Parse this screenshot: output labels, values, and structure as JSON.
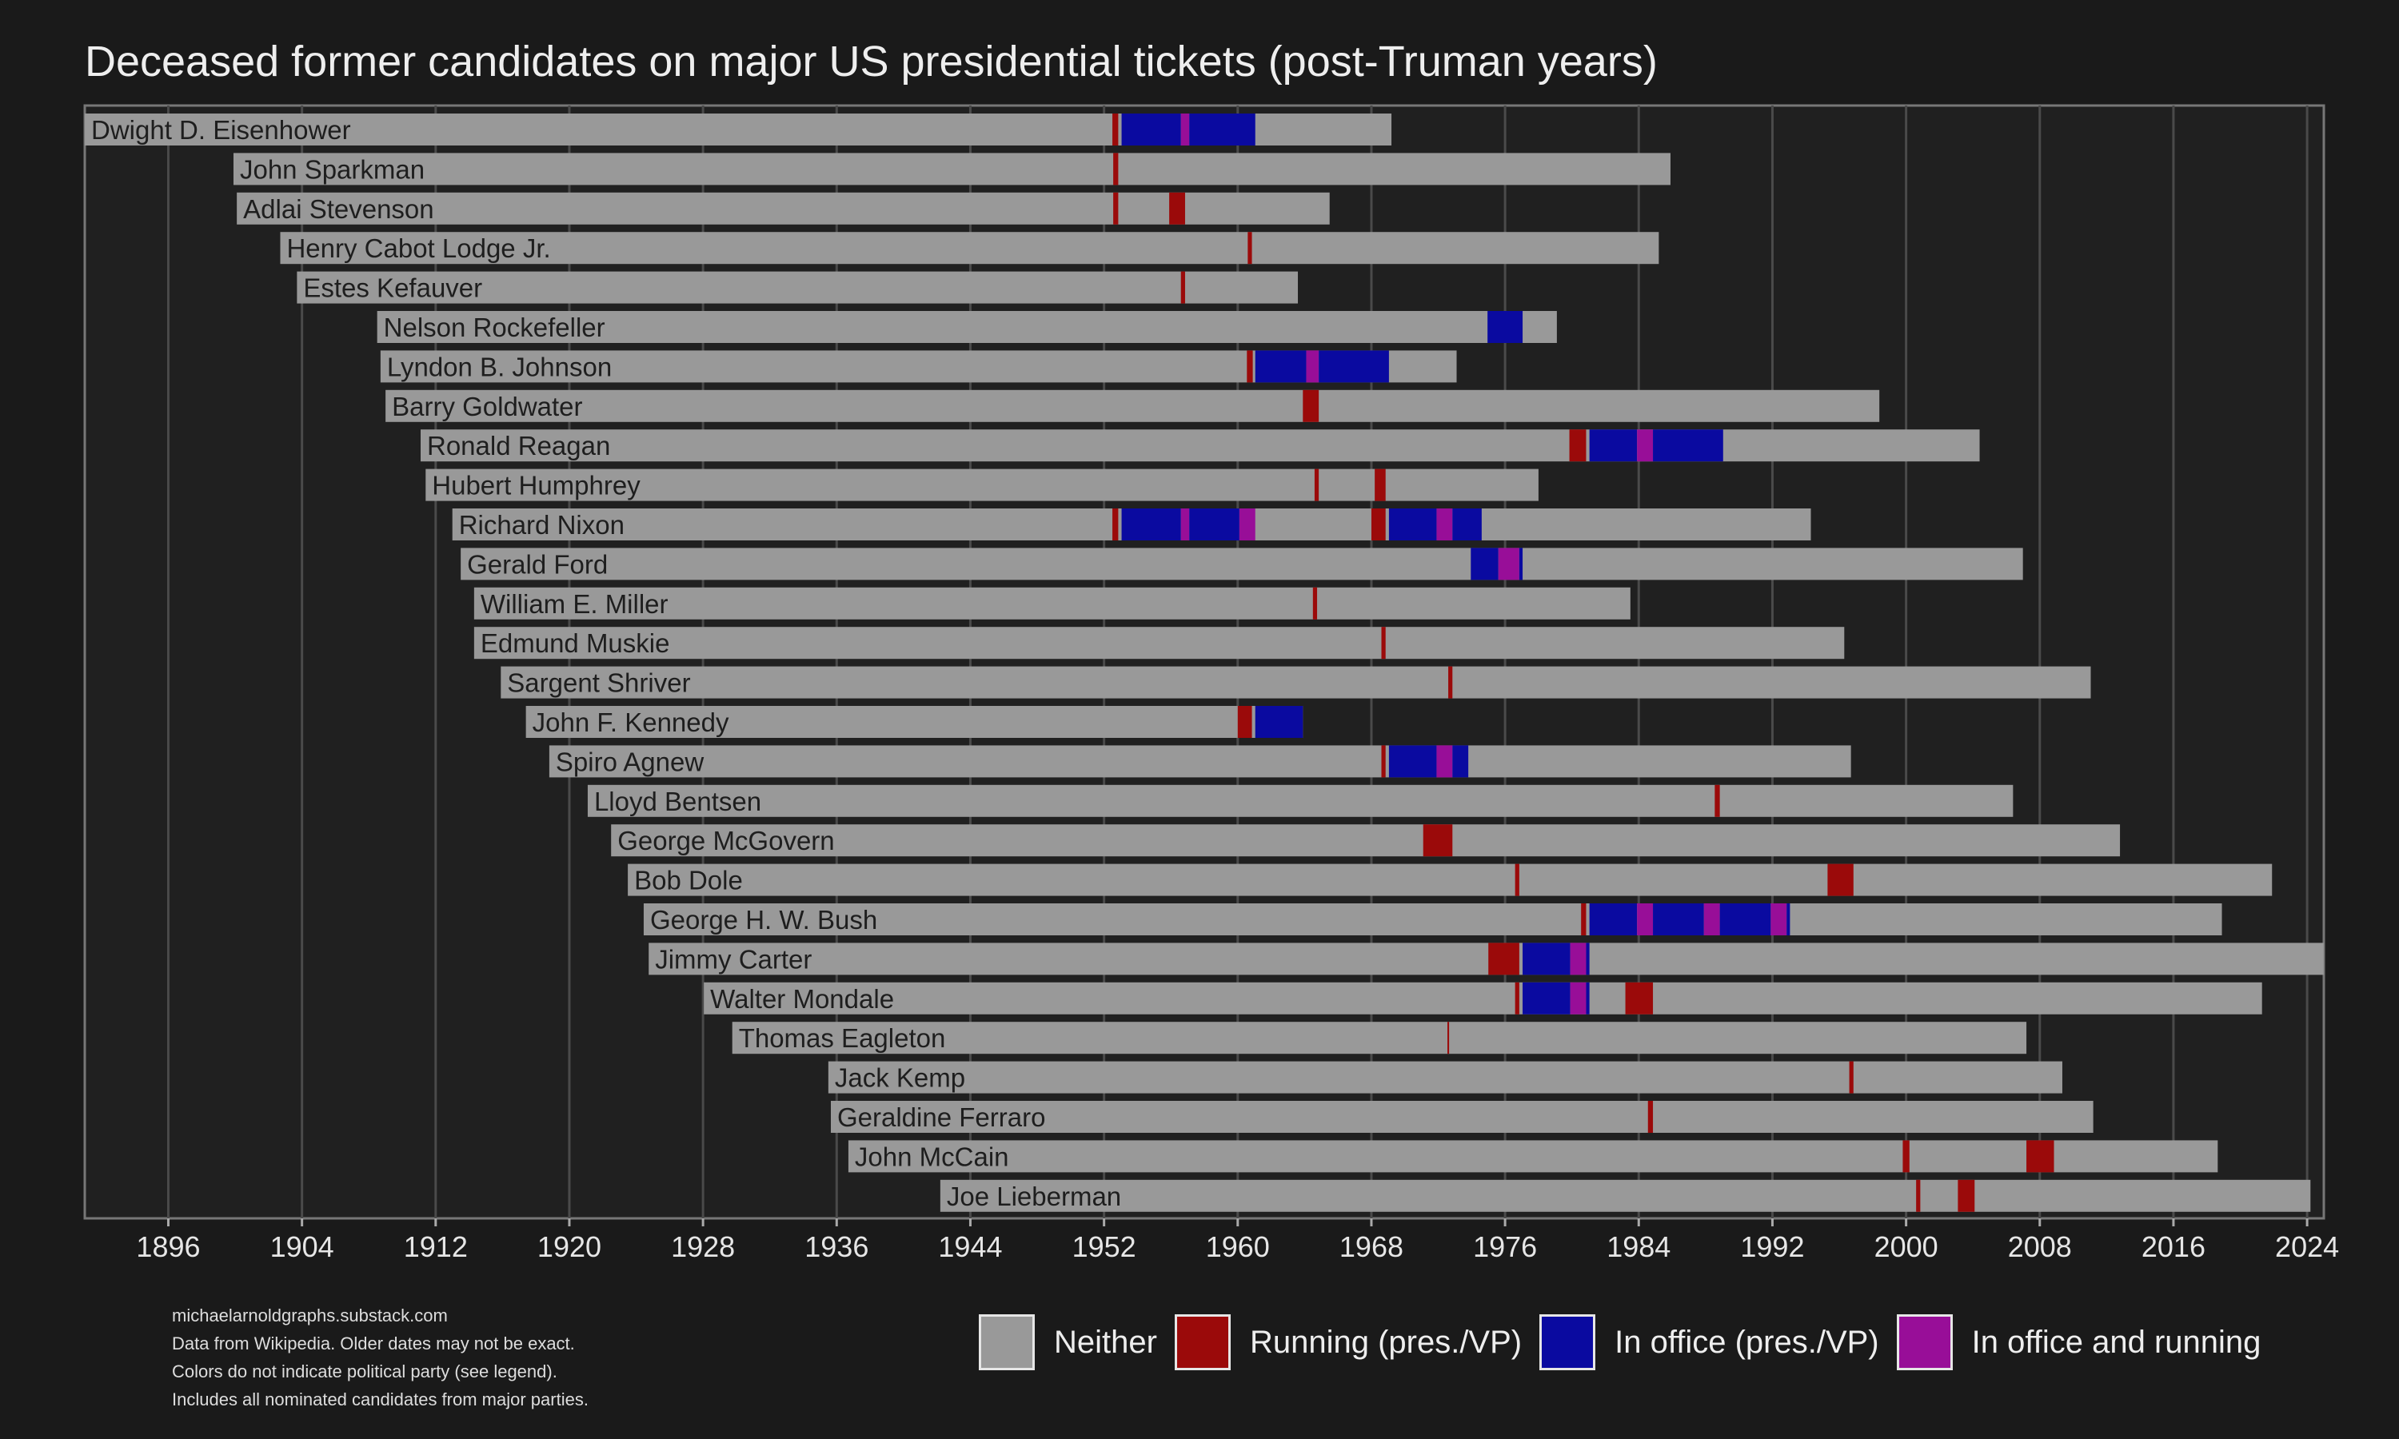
{
  "chart_data": {
    "type": "gantt",
    "title": "Deceased former candidates on major US presidential tickets (post-Truman years)",
    "xlim": [
      1891,
      2025
    ],
    "x_ticks": [
      1896,
      1904,
      1912,
      1920,
      1928,
      1936,
      1944,
      1952,
      1960,
      1968,
      1976,
      1984,
      1992,
      2000,
      2008,
      2016,
      2024
    ],
    "grid": true,
    "legend_position": "bottom-right",
    "colors": {
      "neither": "#999999",
      "running": "#9b0a0a",
      "office": "#0a0aa0",
      "office_running": "#980e98"
    },
    "legend": [
      {
        "key": "neither",
        "label": "Neither"
      },
      {
        "key": "running",
        "label": "Running (pres./VP)"
      },
      {
        "key": "office",
        "label": "In office (pres./VP)"
      },
      {
        "key": "office_running",
        "label": "In office and running"
      }
    ],
    "people": [
      {
        "name": "Dwight D. Eisenhower",
        "birth": 1890.8,
        "death": 1969.2,
        "segments": [
          [
            "running",
            1952.5,
            1952.85
          ],
          [
            "office",
            1953.05,
            1956.6
          ],
          [
            "office_running",
            1956.6,
            1957.1
          ],
          [
            "office",
            1957.1,
            1961.05
          ]
        ]
      },
      {
        "name": "John Sparkman",
        "birth": 1899.9,
        "death": 1985.9,
        "segments": [
          [
            "running",
            1952.55,
            1952.85
          ]
        ]
      },
      {
        "name": "Adlai Stevenson",
        "birth": 1900.1,
        "death": 1965.5,
        "segments": [
          [
            "running",
            1952.55,
            1952.85
          ],
          [
            "running",
            1955.9,
            1956.85
          ]
        ]
      },
      {
        "name": "Henry Cabot Lodge Jr.",
        "birth": 1902.7,
        "death": 1985.2,
        "segments": [
          [
            "running",
            1960.6,
            1960.85
          ]
        ]
      },
      {
        "name": "Estes Kefauver",
        "birth": 1903.7,
        "death": 1963.6,
        "segments": [
          [
            "running",
            1956.6,
            1956.85
          ]
        ]
      },
      {
        "name": "Nelson Rockefeller",
        "birth": 1908.5,
        "death": 1979.1,
        "segments": [
          [
            "office",
            1974.95,
            1977.05
          ]
        ]
      },
      {
        "name": "Lyndon B. Johnson",
        "birth": 1908.7,
        "death": 1973.1,
        "segments": [
          [
            "running",
            1960.55,
            1960.9
          ],
          [
            "office",
            1961.05,
            1964.1
          ],
          [
            "office_running",
            1964.1,
            1964.85
          ],
          [
            "office",
            1964.85,
            1969.05
          ]
        ]
      },
      {
        "name": "Barry Goldwater",
        "birth": 1909.0,
        "death": 1998.4,
        "segments": [
          [
            "running",
            1963.9,
            1964.85
          ]
        ]
      },
      {
        "name": "Ronald Reagan",
        "birth": 1911.1,
        "death": 2004.4,
        "segments": [
          [
            "running",
            1979.85,
            1980.85
          ],
          [
            "office",
            1981.05,
            1983.9
          ],
          [
            "office_running",
            1983.9,
            1984.85
          ],
          [
            "office",
            1984.85,
            1989.05
          ]
        ]
      },
      {
        "name": "Hubert Humphrey",
        "birth": 1911.4,
        "death": 1978.0,
        "segments": [
          [
            "running",
            1964.6,
            1964.85
          ],
          [
            "running",
            1968.2,
            1968.85
          ]
        ]
      },
      {
        "name": "Richard Nixon",
        "birth": 1913.0,
        "death": 1994.3,
        "segments": [
          [
            "running",
            1952.5,
            1952.85
          ],
          [
            "office",
            1953.05,
            1956.6
          ],
          [
            "office_running",
            1956.6,
            1957.1
          ],
          [
            "office",
            1957.1,
            1960.1
          ],
          [
            "office_running",
            1960.1,
            1961.05
          ],
          [
            "running",
            1968.0,
            1968.85
          ],
          [
            "office",
            1969.05,
            1971.9
          ],
          [
            "office_running",
            1971.9,
            1972.85
          ],
          [
            "office",
            1972.85,
            1974.6
          ]
        ]
      },
      {
        "name": "Gerald Ford",
        "birth": 1913.5,
        "death": 2006.99,
        "segments": [
          [
            "office",
            1973.95,
            1975.6
          ],
          [
            "office_running",
            1975.6,
            1976.85
          ],
          [
            "office",
            1976.85,
            1977.05
          ]
        ]
      },
      {
        "name": "William E. Miller",
        "birth": 1914.3,
        "death": 1983.5,
        "segments": [
          [
            "running",
            1964.5,
            1964.75
          ]
        ]
      },
      {
        "name": "Edmund Muskie",
        "birth": 1914.3,
        "death": 1996.3,
        "segments": [
          [
            "running",
            1968.6,
            1968.85
          ]
        ]
      },
      {
        "name": "Sargent Shriver",
        "birth": 1915.9,
        "death": 2011.05,
        "segments": [
          [
            "running",
            1972.6,
            1972.85
          ]
        ]
      },
      {
        "name": "John F. Kennedy",
        "birth": 1917.4,
        "death": 1963.9,
        "segments": [
          [
            "running",
            1960.0,
            1960.85
          ],
          [
            "office",
            1961.05,
            1963.9
          ]
        ]
      },
      {
        "name": "Spiro Agnew",
        "birth": 1918.8,
        "death": 1996.7,
        "segments": [
          [
            "running",
            1968.6,
            1968.85
          ],
          [
            "office",
            1969.05,
            1971.9
          ],
          [
            "office_running",
            1971.9,
            1972.85
          ],
          [
            "office",
            1972.85,
            1973.8
          ]
        ]
      },
      {
        "name": "Lloyd Bentsen",
        "birth": 1921.1,
        "death": 2006.4,
        "segments": [
          [
            "running",
            1988.55,
            1988.85
          ]
        ]
      },
      {
        "name": "George McGovern",
        "birth": 1922.5,
        "death": 2012.8,
        "segments": [
          [
            "running",
            1971.1,
            1972.85
          ]
        ]
      },
      {
        "name": "Bob Dole",
        "birth": 1923.5,
        "death": 2021.9,
        "segments": [
          [
            "running",
            1976.6,
            1976.85
          ],
          [
            "running",
            1995.3,
            1996.85
          ]
        ]
      },
      {
        "name": "George H. W. Bush",
        "birth": 1924.45,
        "death": 2018.9,
        "segments": [
          [
            "running",
            1980.55,
            1980.85
          ],
          [
            "office",
            1981.05,
            1983.9
          ],
          [
            "office_running",
            1983.9,
            1984.85
          ],
          [
            "office",
            1984.85,
            1987.9
          ],
          [
            "office_running",
            1987.9,
            1988.85
          ],
          [
            "office",
            1988.85,
            1991.9
          ],
          [
            "office_running",
            1991.9,
            1992.85
          ],
          [
            "office",
            1992.85,
            1993.05
          ]
        ]
      },
      {
        "name": "Jimmy Carter",
        "birth": 1924.75,
        "death": 2024.99,
        "segments": [
          [
            "running",
            1975.0,
            1976.85
          ],
          [
            "office",
            1977.05,
            1979.9
          ],
          [
            "office_running",
            1979.9,
            1980.85
          ],
          [
            "office",
            1980.85,
            1981.05
          ]
        ]
      },
      {
        "name": "Walter Mondale",
        "birth": 1928.05,
        "death": 2021.3,
        "segments": [
          [
            "running",
            1976.6,
            1976.85
          ],
          [
            "office",
            1977.05,
            1979.9
          ],
          [
            "office_running",
            1979.9,
            1980.85
          ],
          [
            "office",
            1980.85,
            1981.05
          ],
          [
            "running",
            1983.2,
            1984.85
          ]
        ]
      },
      {
        "name": "Thomas Eagleton",
        "birth": 1929.75,
        "death": 2007.2,
        "segments": [
          [
            "running",
            1972.55,
            1972.65
          ]
        ]
      },
      {
        "name": "Jack Kemp",
        "birth": 1935.5,
        "death": 2009.35,
        "segments": [
          [
            "running",
            1996.6,
            1996.85
          ]
        ]
      },
      {
        "name": "Geraldine Ferraro",
        "birth": 1935.65,
        "death": 2011.2,
        "segments": [
          [
            "running",
            1984.55,
            1984.85
          ]
        ]
      },
      {
        "name": "John McCain",
        "birth": 1936.7,
        "death": 2018.65,
        "segments": [
          [
            "running",
            1999.8,
            2000.2
          ],
          [
            "running",
            2007.2,
            2008.85
          ]
        ]
      },
      {
        "name": "Joe Lieberman",
        "birth": 1942.2,
        "death": 2024.2,
        "segments": [
          [
            "running",
            2000.6,
            2000.85
          ],
          [
            "running",
            2003.1,
            2004.1
          ]
        ]
      }
    ]
  },
  "notes": [
    "michaelarnoldgraphs.substack.com",
    "Data from Wikipedia. Older dates may not be exact.",
    "Colors do not indicate political party (see legend).",
    "Includes all nominated candidates from major parties."
  ]
}
